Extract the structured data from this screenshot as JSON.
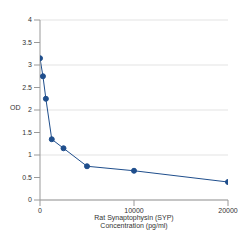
{
  "chart_data": {
    "type": "line",
    "xlabel": [
      "Rat Synaptophysin (SYP)",
      "Concentration (pg/ml)"
    ],
    "ylabel": "OD",
    "x": [
      0,
      312.5,
      625,
      1250,
      2500,
      5000,
      10000,
      20000
    ],
    "values": [
      3.15,
      2.75,
      2.25,
      1.35,
      1.15,
      0.75,
      0.65,
      0.4
    ],
    "color": "#1f4e8c",
    "marker": "circle",
    "xlim": [
      0,
      20000
    ],
    "xticks": [
      0,
      10000,
      20000
    ],
    "ylim": [
      0,
      4
    ],
    "yticks": [
      0,
      0.5,
      1,
      1.5,
      2,
      2.5,
      3,
      3.5,
      4
    ],
    "grid": true
  }
}
